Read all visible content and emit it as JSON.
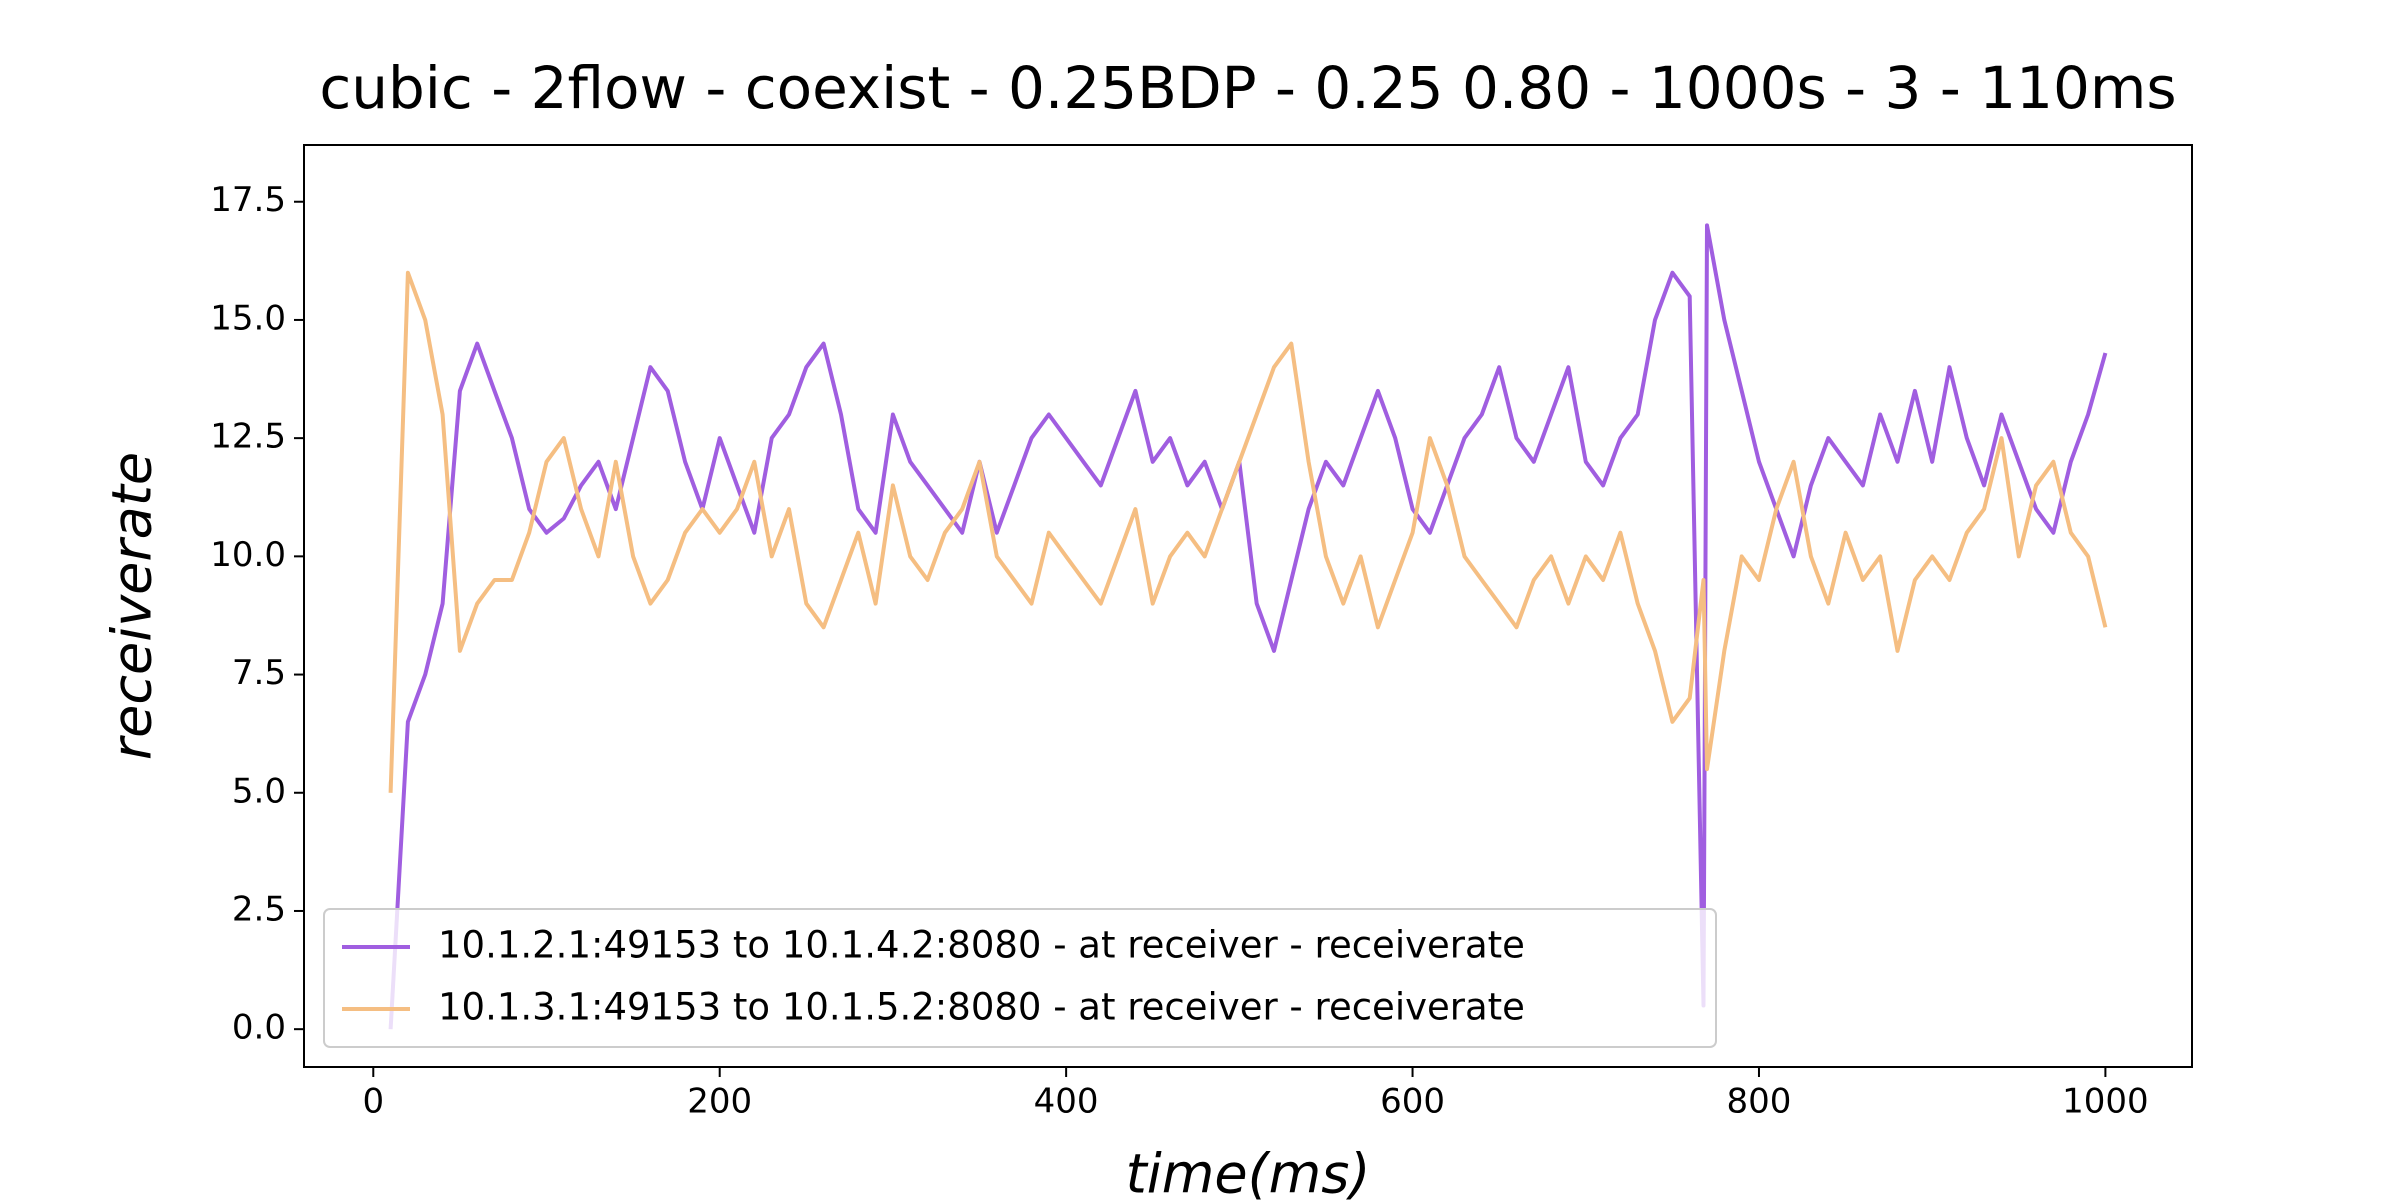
{
  "chart_data": {
    "type": "line",
    "title": "cubic - 2flow - coexist - 0.25BDP - 0.25 0.80 - 1000s - 3 - 110ms",
    "xlabel": "time(ms)",
    "ylabel": "receiverate",
    "x": [
      10,
      20,
      30,
      40,
      50,
      60,
      70,
      80,
      90,
      100,
      110,
      120,
      130,
      140,
      150,
      160,
      170,
      180,
      190,
      200,
      210,
      220,
      230,
      240,
      250,
      260,
      270,
      280,
      290,
      300,
      310,
      320,
      330,
      340,
      350,
      360,
      370,
      380,
      390,
      400,
      410,
      420,
      430,
      440,
      450,
      460,
      470,
      480,
      490,
      500,
      510,
      520,
      530,
      540,
      550,
      560,
      570,
      580,
      590,
      600,
      610,
      620,
      630,
      640,
      650,
      660,
      670,
      680,
      690,
      700,
      710,
      720,
      730,
      740,
      750,
      760,
      768,
      770,
      780,
      790,
      800,
      810,
      820,
      830,
      840,
      850,
      860,
      870,
      880,
      890,
      900,
      910,
      920,
      930,
      940,
      950,
      960,
      970,
      980,
      990,
      1000
    ],
    "series": [
      {
        "name": "10.1.2.1:49153 to 10.1.4.2:8080 - at receiver - receiverate",
        "color": "#a05ee0",
        "values": [
          0,
          6.5,
          7.5,
          9,
          13.5,
          14.5,
          13.5,
          12.5,
          11,
          10.5,
          10.8,
          11.5,
          12,
          11,
          12.5,
          14,
          13.5,
          12,
          11,
          12.5,
          11.5,
          10.5,
          12.5,
          13,
          14,
          14.5,
          13,
          11,
          10.5,
          13,
          12,
          11.5,
          11,
          10.5,
          12,
          10.5,
          11.5,
          12.5,
          13,
          12.5,
          12,
          11.5,
          12.5,
          13.5,
          12,
          12.5,
          11.5,
          12,
          11,
          12,
          9,
          8,
          9.5,
          11,
          12,
          11.5,
          12.5,
          13.5,
          12.5,
          11,
          10.5,
          11.5,
          12.5,
          13,
          14,
          12.5,
          12,
          13,
          14,
          12,
          11.5,
          12.5,
          13,
          15,
          16,
          15.5,
          0.5,
          17,
          15,
          13.5,
          12,
          11,
          10,
          11.5,
          12.5,
          12,
          11.5,
          13,
          12,
          13.5,
          12,
          14,
          12.5,
          11.5,
          13,
          12,
          11,
          10.5,
          12,
          13,
          14.3
        ]
      },
      {
        "name": "10.1.3.1:49153 to 10.1.5.2:8080 - at receiver - receiverate",
        "color": "#f5be82",
        "values": [
          5,
          16,
          15,
          13,
          8,
          9,
          9.5,
          9.5,
          10.5,
          12,
          12.5,
          11,
          10,
          12,
          10,
          9,
          9.5,
          10.5,
          11,
          10.5,
          11,
          12,
          10,
          11,
          9,
          8.5,
          9.5,
          10.5,
          9,
          11.5,
          10,
          9.5,
          10.5,
          11,
          12,
          10,
          9.5,
          9,
          10.5,
          10,
          9.5,
          9,
          10,
          11,
          9,
          10,
          10.5,
          10,
          11,
          12,
          13,
          14,
          14.5,
          12,
          10,
          9,
          10,
          8.5,
          9.5,
          10.5,
          12.5,
          11.5,
          10,
          9.5,
          9,
          8.5,
          9.5,
          10,
          9,
          10,
          9.5,
          10.5,
          9,
          8,
          6.5,
          7,
          9.5,
          5.5,
          8,
          10,
          9.5,
          11,
          12,
          10,
          9,
          10.5,
          9.5,
          10,
          8,
          9.5,
          10,
          9.5,
          10.5,
          11,
          12.5,
          10,
          11.5,
          12,
          10.5,
          10,
          8.5
        ]
      }
    ],
    "xlim": [
      -40,
      1050
    ],
    "ylim": [
      -0.8,
      18.7
    ],
    "xticks": [
      0,
      200,
      400,
      600,
      800,
      1000
    ],
    "yticks": [
      {
        "value": 0,
        "label": "0.0"
      },
      2.5,
      {
        "value": 5,
        "label": "5.0"
      },
      7.5,
      {
        "value": 10,
        "label": "10.0"
      },
      12.5,
      {
        "value": 15,
        "label": "15.0"
      },
      17.5
    ],
    "legend": "lower left"
  }
}
